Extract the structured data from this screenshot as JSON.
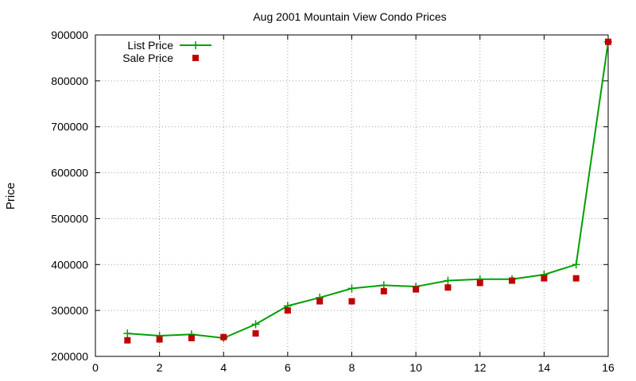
{
  "chart_data": {
    "type": "line",
    "title": "Aug 2001 Mountain View Condo Prices",
    "xlabel": "",
    "ylabel": "Price",
    "xlim": [
      0,
      16
    ],
    "ylim": [
      200000,
      900000
    ],
    "xticks": [
      0,
      2,
      4,
      6,
      8,
      10,
      12,
      14,
      16
    ],
    "yticks": [
      200000,
      300000,
      400000,
      500000,
      600000,
      700000,
      800000,
      900000
    ],
    "grid": true,
    "legend_position": "top-left",
    "series": [
      {
        "name": "List Price",
        "style": "lines+crosses",
        "color": "#00a000",
        "x": [
          1,
          2,
          3,
          4,
          5,
          6,
          7,
          8,
          9,
          10,
          11,
          12,
          13,
          14,
          15,
          16
        ],
        "y": [
          250000,
          245000,
          248000,
          240000,
          270000,
          310000,
          328000,
          348000,
          355000,
          352000,
          365000,
          368000,
          368000,
          378000,
          400000,
          885000
        ]
      },
      {
        "name": "Sale Price",
        "style": "points",
        "color": "#c00000",
        "x": [
          1,
          2,
          3,
          4,
          5,
          6,
          7,
          8,
          9,
          10,
          11,
          12,
          13,
          14,
          15,
          16
        ],
        "y": [
          235000,
          237000,
          240000,
          242000,
          250000,
          300000,
          320000,
          320000,
          342000,
          346000,
          350000,
          360000,
          365000,
          370000,
          370000,
          885000
        ]
      }
    ]
  }
}
